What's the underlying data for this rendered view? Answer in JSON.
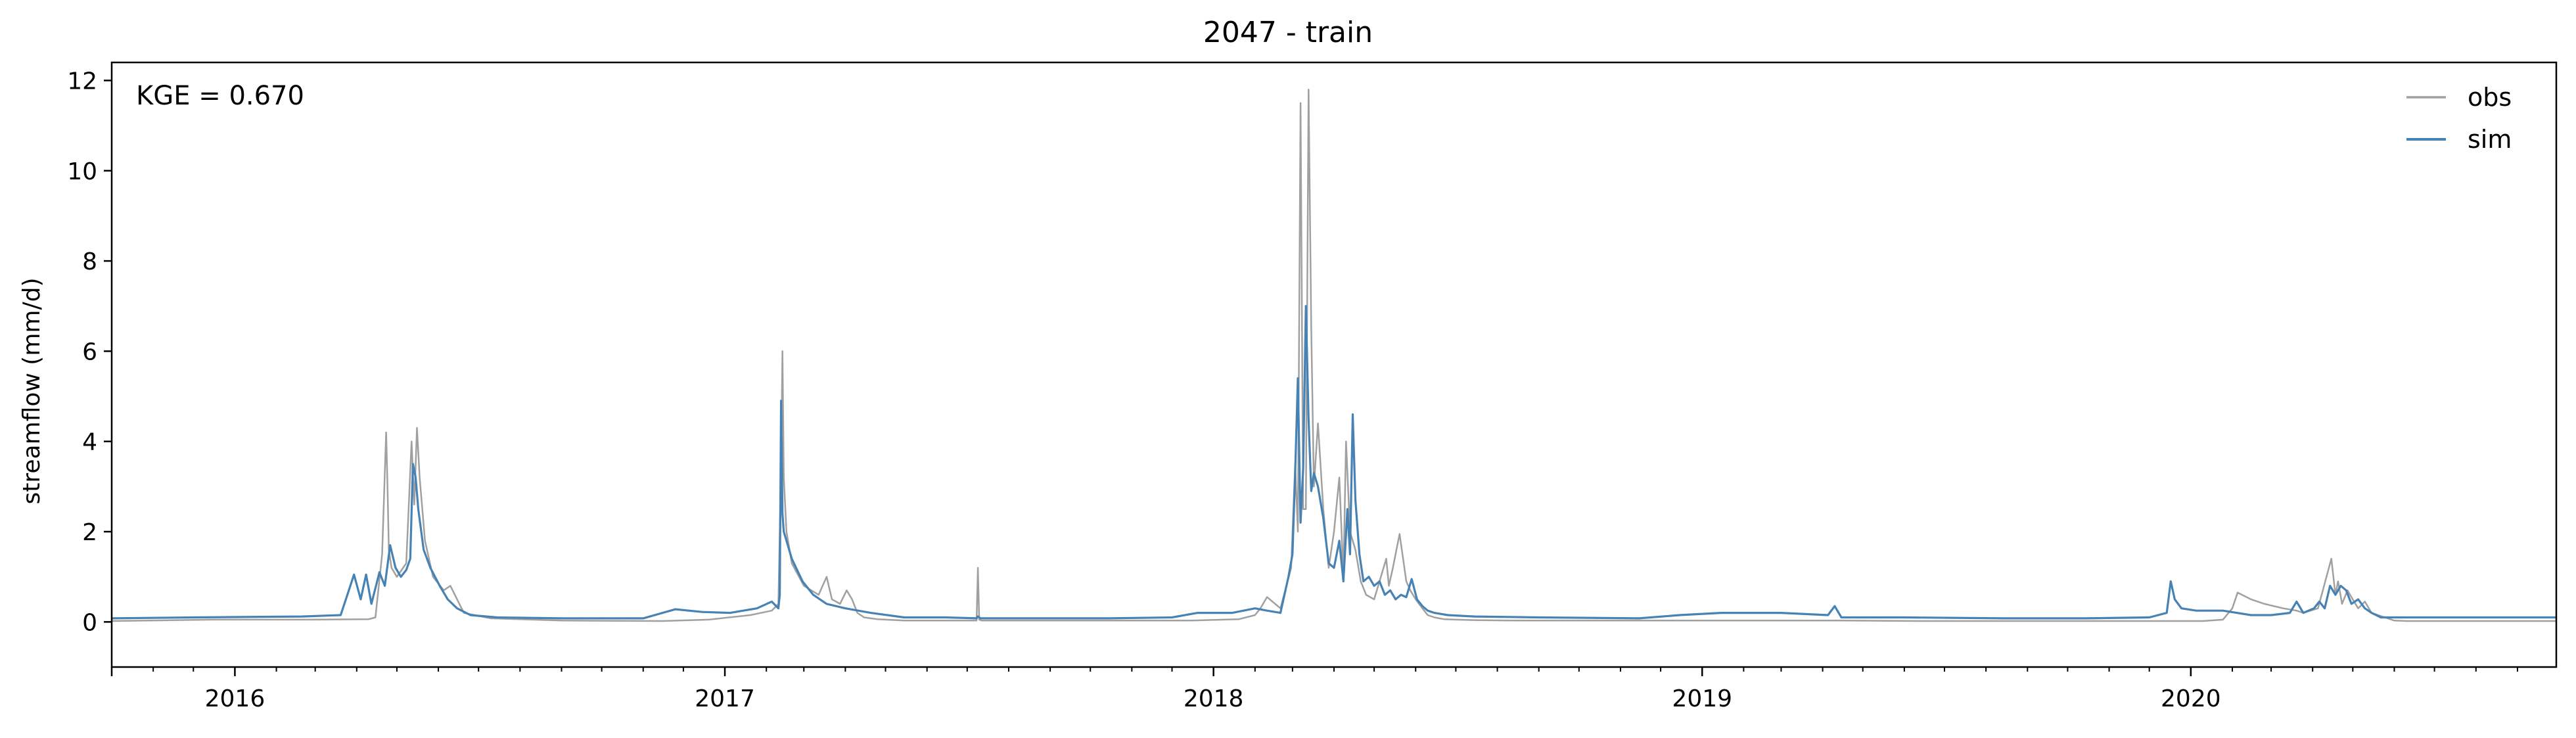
{
  "colors": {
    "obs": "#a0a0a0",
    "sim": "#4682b4",
    "axis": "#000000",
    "background": "#ffffff"
  },
  "chart_data": {
    "type": "line",
    "title": "2047 - train",
    "xlabel": "",
    "ylabel": "streamflow (mm/d)",
    "annotation": "KGE = 0.670",
    "legend_position": "top-right",
    "grid": false,
    "xlim": [
      "2015-10-01",
      "2020-09-30"
    ],
    "ylim": [
      -1.0,
      12.4
    ],
    "x_ticks": [
      {
        "value": "2016-01-01",
        "label": "2016"
      },
      {
        "value": "2017-01-01",
        "label": "2017"
      },
      {
        "value": "2018-01-01",
        "label": "2018"
      },
      {
        "value": "2019-01-01",
        "label": "2019"
      },
      {
        "value": "2020-01-01",
        "label": "2020"
      }
    ],
    "y_ticks": [
      {
        "value": 0,
        "label": "0"
      },
      {
        "value": 2,
        "label": "2"
      },
      {
        "value": 4,
        "label": "4"
      },
      {
        "value": 6,
        "label": "6"
      },
      {
        "value": 8,
        "label": "8"
      },
      {
        "value": 10,
        "label": "10"
      },
      {
        "value": 12,
        "label": "12"
      }
    ],
    "series": [
      {
        "name": "obs",
        "color": "#a0a0a0",
        "x": [
          "2015-10-01",
          "2015-12-15",
          "2016-03-01",
          "2016-04-10",
          "2016-04-15",
          "2016-04-20",
          "2016-04-23",
          "2016-04-24",
          "2016-04-25",
          "2016-04-27",
          "2016-05-01",
          "2016-05-08",
          "2016-05-12",
          "2016-05-14",
          "2016-05-16",
          "2016-05-18",
          "2016-05-22",
          "2016-05-28",
          "2016-06-05",
          "2016-06-10",
          "2016-06-20",
          "2016-07-10",
          "2016-09-01",
          "2016-11-15",
          "2016-12-20",
          "2017-01-20",
          "2017-02-05",
          "2017-02-10",
          "2017-02-12",
          "2017-02-13",
          "2017-02-14",
          "2017-02-16",
          "2017-02-20",
          "2017-03-01",
          "2017-03-12",
          "2017-03-18",
          "2017-03-22",
          "2017-03-28",
          "2017-04-02",
          "2017-04-06",
          "2017-04-10",
          "2017-04-15",
          "2017-04-25",
          "2017-05-15",
          "2017-06-15",
          "2017-07-08",
          "2017-07-09",
          "2017-07-10",
          "2017-07-12",
          "2017-08-15",
          "2017-10-15",
          "2017-12-15",
          "2018-01-20",
          "2018-02-01",
          "2018-02-05",
          "2018-02-10",
          "2018-02-20",
          "2018-02-28",
          "2018-03-03",
          "2018-03-05",
          "2018-03-07",
          "2018-03-09",
          "2018-03-11",
          "2018-03-13",
          "2018-03-15",
          "2018-03-17",
          "2018-03-20",
          "2018-03-24",
          "2018-03-28",
          "2018-04-01",
          "2018-04-05",
          "2018-04-08",
          "2018-04-10",
          "2018-04-13",
          "2018-04-17",
          "2018-04-21",
          "2018-04-25",
          "2018-05-01",
          "2018-05-05",
          "2018-05-10",
          "2018-05-12",
          "2018-05-15",
          "2018-05-20",
          "2018-05-25",
          "2018-05-28",
          "2018-06-01",
          "2018-06-06",
          "2018-06-10",
          "2018-06-15",
          "2018-06-22",
          "2018-07-01",
          "2018-07-15",
          "2018-08-15",
          "2018-10-15",
          "2018-12-20",
          "2019-01-20",
          "2019-03-01",
          "2019-04-15",
          "2019-06-15",
          "2019-08-15",
          "2019-10-15",
          "2019-12-01",
          "2019-12-20",
          "2020-01-10",
          "2020-01-25",
          "2020-02-01",
          "2020-02-05",
          "2020-02-15",
          "2020-02-25",
          "2020-03-10",
          "2020-03-20",
          "2020-03-25",
          "2020-04-05",
          "2020-04-15",
          "2020-04-18",
          "2020-04-20",
          "2020-04-23",
          "2020-04-27",
          "2020-05-01",
          "2020-05-05",
          "2020-05-10",
          "2020-05-15",
          "2020-05-20",
          "2020-05-25",
          "2020-06-01",
          "2020-06-10",
          "2020-07-15",
          "2020-08-20",
          "2020-09-30"
        ],
        "y": [
          0.02,
          0.05,
          0.05,
          0.06,
          0.1,
          1.5,
          4.2,
          3.0,
          1.6,
          1.2,
          1.0,
          1.3,
          4.0,
          2.6,
          4.3,
          3.2,
          1.8,
          1.0,
          0.7,
          0.8,
          0.2,
          0.08,
          0.03,
          0.02,
          0.05,
          0.15,
          0.25,
          0.4,
          3.5,
          6.0,
          3.2,
          2.0,
          1.3,
          0.8,
          0.6,
          1.0,
          0.5,
          0.4,
          0.7,
          0.5,
          0.2,
          0.1,
          0.06,
          0.03,
          0.03,
          0.03,
          1.2,
          0.05,
          0.03,
          0.03,
          0.03,
          0.03,
          0.06,
          0.15,
          0.3,
          0.55,
          0.3,
          1.2,
          3.5,
          2.0,
          11.5,
          2.5,
          2.5,
          11.8,
          6.5,
          3.0,
          4.4,
          2.5,
          1.2,
          2.0,
          3.2,
          1.0,
          4.0,
          2.0,
          1.6,
          0.9,
          0.6,
          0.5,
          0.9,
          1.4,
          0.8,
          1.2,
          1.95,
          0.9,
          0.7,
          0.5,
          0.3,
          0.15,
          0.1,
          0.06,
          0.05,
          0.04,
          0.03,
          0.03,
          0.03,
          0.03,
          0.03,
          0.03,
          0.02,
          0.02,
          0.02,
          0.02,
          0.02,
          0.02,
          0.05,
          0.3,
          0.65,
          0.5,
          0.4,
          0.3,
          0.25,
          0.2,
          0.3,
          1.4,
          0.6,
          0.9,
          0.4,
          0.7,
          0.5,
          0.3,
          0.45,
          0.2,
          0.15,
          0.1,
          0.03,
          0.02,
          0.02,
          0.02,
          0.02
        ]
      },
      {
        "name": "sim",
        "color": "#4682b4",
        "x": [
          "2015-10-01",
          "2015-12-01",
          "2016-02-20",
          "2016-03-20",
          "2016-03-25",
          "2016-03-30",
          "2016-04-04",
          "2016-04-08",
          "2016-04-12",
          "2016-04-18",
          "2016-04-22",
          "2016-04-26",
          "2016-04-30",
          "2016-05-04",
          "2016-05-08",
          "2016-05-11",
          "2016-05-13",
          "2016-05-15",
          "2016-05-17",
          "2016-05-21",
          "2016-05-26",
          "2016-06-02",
          "2016-06-08",
          "2016-06-15",
          "2016-06-25",
          "2016-07-15",
          "2016-09-01",
          "2016-11-01",
          "2016-11-25",
          "2016-12-15",
          "2017-01-05",
          "2017-01-25",
          "2017-02-05",
          "2017-02-10",
          "2017-02-11",
          "2017-02-12",
          "2017-02-13",
          "2017-02-14",
          "2017-02-16",
          "2017-02-20",
          "2017-02-28",
          "2017-03-08",
          "2017-03-18",
          "2017-04-01",
          "2017-04-20",
          "2017-05-15",
          "2017-06-15",
          "2017-07-08",
          "2017-07-09",
          "2017-07-10",
          "2017-07-11",
          "2017-08-15",
          "2017-10-15",
          "2017-12-01",
          "2017-12-20",
          "2018-01-15",
          "2018-02-01",
          "2018-02-10",
          "2018-02-20",
          "2018-02-26",
          "2018-03-01",
          "2018-03-03",
          "2018-03-05",
          "2018-03-07",
          "2018-03-09",
          "2018-03-11",
          "2018-03-13",
          "2018-03-15",
          "2018-03-17",
          "2018-03-20",
          "2018-03-24",
          "2018-03-28",
          "2018-04-01",
          "2018-04-05",
          "2018-04-08",
          "2018-04-11",
          "2018-04-13",
          "2018-04-15",
          "2018-04-17",
          "2018-04-20",
          "2018-04-23",
          "2018-04-27",
          "2018-05-01",
          "2018-05-05",
          "2018-05-09",
          "2018-05-13",
          "2018-05-17",
          "2018-05-21",
          "2018-05-25",
          "2018-05-29",
          "2018-06-02",
          "2018-06-06",
          "2018-06-10",
          "2018-06-15",
          "2018-06-25",
          "2018-07-15",
          "2018-09-01",
          "2018-11-15",
          "2018-12-15",
          "2019-01-15",
          "2019-03-01",
          "2019-04-05",
          "2019-04-10",
          "2019-04-15",
          "2019-06-01",
          "2019-08-15",
          "2019-10-15",
          "2019-12-01",
          "2019-12-14",
          "2019-12-17",
          "2019-12-20",
          "2019-12-25",
          "2020-01-05",
          "2020-01-25",
          "2020-02-15",
          "2020-03-01",
          "2020-03-15",
          "2020-03-20",
          "2020-03-25",
          "2020-04-02",
          "2020-04-06",
          "2020-04-10",
          "2020-04-14",
          "2020-04-18",
          "2020-04-22",
          "2020-04-26",
          "2020-04-30",
          "2020-05-05",
          "2020-05-10",
          "2020-05-15",
          "2020-05-22",
          "2020-06-01",
          "2020-06-15",
          "2020-07-15",
          "2020-09-30"
        ],
        "y": [
          0.08,
          0.1,
          0.12,
          0.15,
          0.6,
          1.05,
          0.5,
          1.05,
          0.4,
          1.1,
          0.8,
          1.7,
          1.2,
          1.0,
          1.15,
          1.4,
          3.5,
          3.2,
          2.5,
          1.6,
          1.2,
          0.8,
          0.5,
          0.3,
          0.15,
          0.1,
          0.08,
          0.08,
          0.28,
          0.22,
          0.2,
          0.3,
          0.45,
          0.3,
          0.6,
          4.9,
          2.4,
          2.0,
          1.8,
          1.4,
          0.9,
          0.6,
          0.4,
          0.3,
          0.2,
          0.1,
          0.1,
          0.08,
          0.12,
          0.1,
          0.08,
          0.08,
          0.08,
          0.1,
          0.2,
          0.2,
          0.3,
          0.25,
          0.2,
          1.0,
          1.5,
          3.3,
          5.4,
          2.2,
          3.4,
          7.0,
          4.5,
          2.9,
          3.3,
          3.0,
          2.3,
          1.3,
          1.2,
          1.8,
          0.9,
          2.5,
          1.5,
          4.6,
          2.7,
          1.5,
          0.9,
          1.0,
          0.8,
          0.9,
          0.6,
          0.7,
          0.5,
          0.6,
          0.55,
          0.95,
          0.5,
          0.35,
          0.25,
          0.2,
          0.15,
          0.12,
          0.1,
          0.08,
          0.15,
          0.2,
          0.2,
          0.15,
          0.35,
          0.1,
          0.1,
          0.08,
          0.08,
          0.1,
          0.2,
          0.9,
          0.5,
          0.3,
          0.25,
          0.25,
          0.15,
          0.15,
          0.2,
          0.45,
          0.2,
          0.3,
          0.45,
          0.3,
          0.8,
          0.6,
          0.8,
          0.7,
          0.4,
          0.5,
          0.3,
          0.2,
          0.1,
          0.1,
          0.1,
          0.1,
          0.1
        ]
      }
    ]
  }
}
